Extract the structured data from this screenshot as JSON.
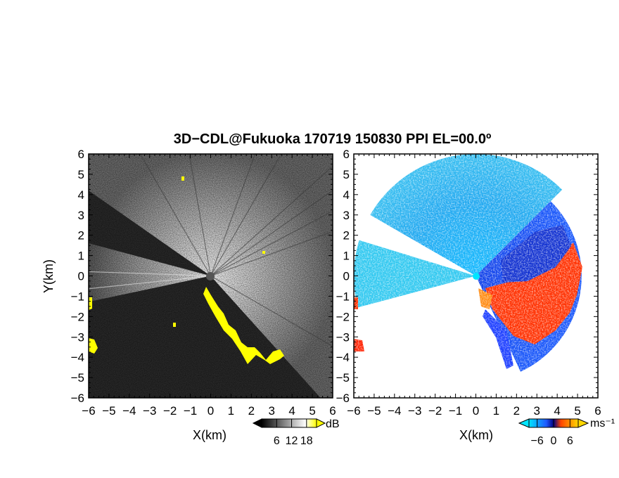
{
  "title": "3D−CDL@Fukuoka 170719 150830 PPI EL=00.0º",
  "chart_data": [
    {
      "type": "heatmap",
      "panel": "left",
      "quantity": "backscatter intensity (grayscale)",
      "xlabel": "X(km)",
      "ylabel": "Y(km)",
      "xlim": [
        -6,
        6
      ],
      "ylim": [
        -6,
        6
      ],
      "xticks": [
        "−6",
        "−5",
        "−4",
        "−3",
        "−2",
        "−1",
        "0",
        "1",
        "2",
        "3",
        "4",
        "5",
        "6"
      ],
      "yticks": [
        "6",
        "5",
        "4",
        "3",
        "2",
        "1",
        "0",
        "−1",
        "−2",
        "−3",
        "−4",
        "−5",
        "−6"
      ],
      "colorbar": {
        "unit": "dB",
        "ticks": [
          "6",
          "12",
          "18"
        ],
        "tick_values": [
          6,
          12,
          18
        ],
        "range": [
          0,
          22
        ],
        "colors": [
          "#000000",
          "#ffffff",
          "#ffff00"
        ],
        "extend": "both"
      },
      "features": {
        "bright_sector_deg": [
          -48,
          145
        ],
        "bright_lobe_deg": [
          165,
          192
        ],
        "yellow_hits": "strip along ~-60 deg boundary from (0,-1) to (3.5,-4), patches at x=-6 near y=-1.3 and y=-3.5"
      }
    },
    {
      "type": "heatmap",
      "panel": "right",
      "quantity": "radial velocity",
      "xlabel": "X(km)",
      "xlim": [
        -6,
        6
      ],
      "ylim": [
        -6,
        6
      ],
      "xticks": [
        "−6",
        "−5",
        "−4",
        "−3",
        "−2",
        "−1",
        "0",
        "1",
        "2",
        "3",
        "4",
        "5",
        "6"
      ],
      "yticks": [
        "6",
        "5",
        "4",
        "3",
        "2",
        "1",
        "0",
        "−1",
        "−2",
        "−3",
        "−4",
        "−5",
        "−6"
      ],
      "colorbar": {
        "unit": "ms⁻¹",
        "ticks": [
          "−6",
          "0",
          "6"
        ],
        "tick_values": [
          -6,
          0,
          6
        ],
        "range": [
          -9,
          9
        ],
        "colors": [
          "#00e5ff",
          "#1e5aff",
          "#000080",
          "#ff4500",
          "#ffd700"
        ],
        "extend": "both"
      },
      "features": {
        "approaching_sector_deg": [
          90,
          150
        ],
        "receding_sector_deg": [
          -45,
          15
        ],
        "max_range_km": 6
      }
    }
  ]
}
